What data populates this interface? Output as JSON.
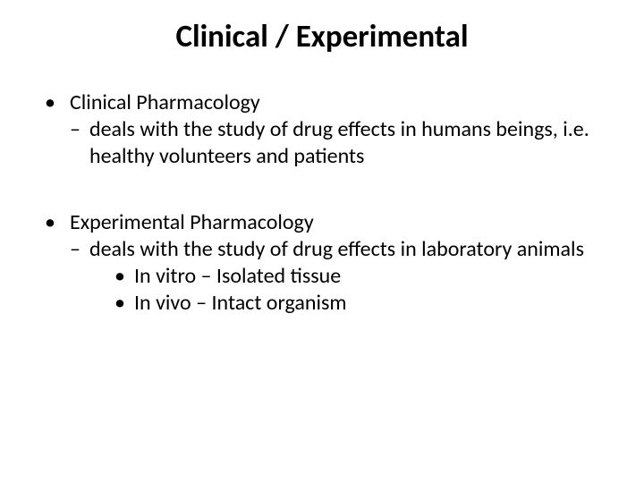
{
  "title": "Clinical / Experimental",
  "sections": [
    {
      "heading": "Clinical Pharmacology",
      "dash": "deals with the study of drug effects in humans beings, i.e. healthy volunteers and patients",
      "subs": []
    },
    {
      "heading": "Experimental Pharmacology",
      "dash": "deals with the study of drug effects in laboratory animals",
      "subs": [
        "In vitro – Isolated tissue",
        "In vivo – Intact organism"
      ]
    }
  ],
  "colors": {
    "background": "#ffffff",
    "text": "#000000"
  },
  "fontsize": {
    "title": 35,
    "body": 24
  }
}
